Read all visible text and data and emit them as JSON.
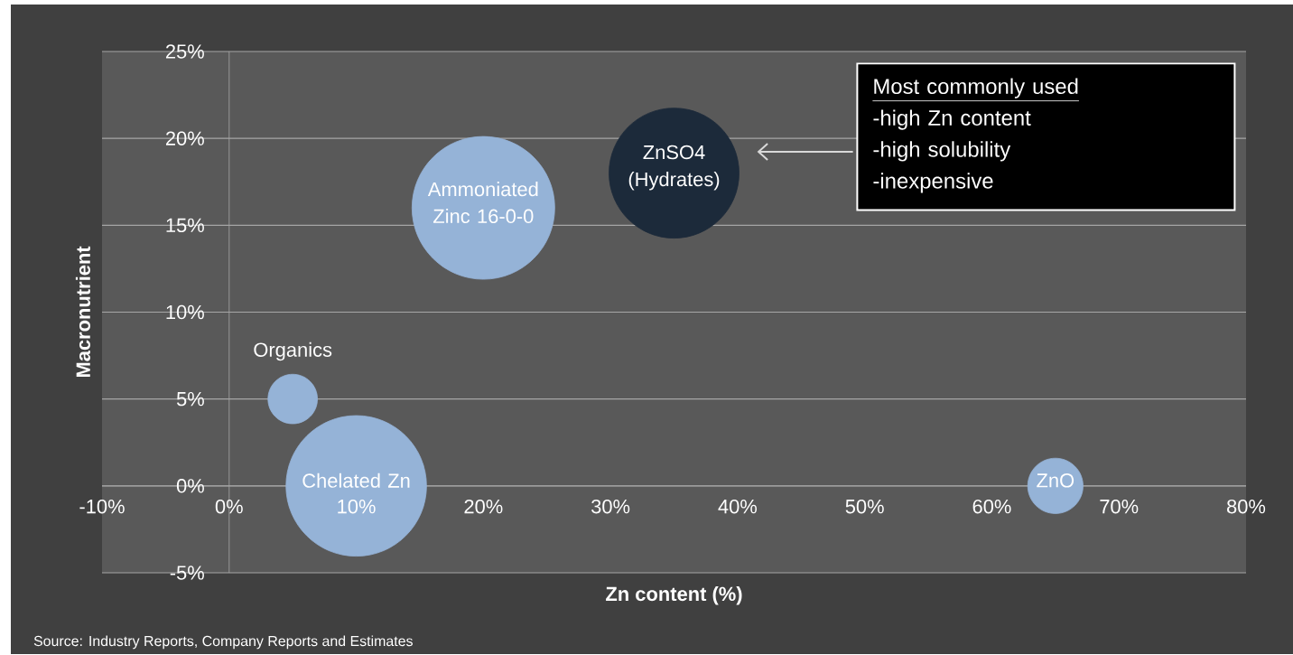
{
  "chart_data": {
    "type": "bubble",
    "xlabel": "Zn content (%)",
    "ylabel": "Macronutrient",
    "xlim": [
      -10,
      80
    ],
    "ylim": [
      -5,
      25
    ],
    "xticks": [
      {
        "value": -10,
        "label": "-10%"
      },
      {
        "value": 0,
        "label": "0%"
      },
      {
        "value": 10,
        "label": "10%"
      },
      {
        "value": 20,
        "label": "20%"
      },
      {
        "value": 30,
        "label": "30%"
      },
      {
        "value": 40,
        "label": "40%"
      },
      {
        "value": 50,
        "label": "50%"
      },
      {
        "value": 60,
        "label": "60%"
      },
      {
        "value": 70,
        "label": "70%"
      },
      {
        "value": 80,
        "label": "80%"
      }
    ],
    "yticks": [
      {
        "value": -5,
        "label": "-5%"
      },
      {
        "value": 0,
        "label": "0%"
      },
      {
        "value": 5,
        "label": "5%"
      },
      {
        "value": 10,
        "label": "10%"
      },
      {
        "value": 15,
        "label": "15%"
      },
      {
        "value": 20,
        "label": "20%"
      },
      {
        "value": 25,
        "label": "25%"
      }
    ],
    "grid": "y",
    "series": [
      {
        "x": [
          5,
          10,
          20,
          35,
          65
        ],
        "values": [
          5,
          0,
          16,
          18,
          0
        ],
        "sizes": [
          0.12,
          0.97,
          1,
          0.83,
          0.15
        ],
        "colors": [
          "#95b3d7",
          "#95b3d7",
          "#95b3d7",
          "#1c2a3a",
          "#95b3d7"
        ]
      }
    ],
    "annotations": [
      {
        "text": "Organics",
        "x": 5,
        "y": 5
      },
      {
        "text": "Chelated Zn",
        "x": 10,
        "y": 0
      },
      {
        "text": "Ammoniated Zinc 16-0-0",
        "x": 20,
        "y": 16
      },
      {
        "text": "ZnSO4 (Hydrates)",
        "x": 35,
        "y": 18
      },
      {
        "text": "ZnO",
        "x": 65,
        "y": 0
      },
      "Most commonly used",
      "-high Zn content",
      "-high solubility",
      "-inexpensive",
      "Source: Industry Reports, Company Reports and Estimates"
    ]
  }
}
